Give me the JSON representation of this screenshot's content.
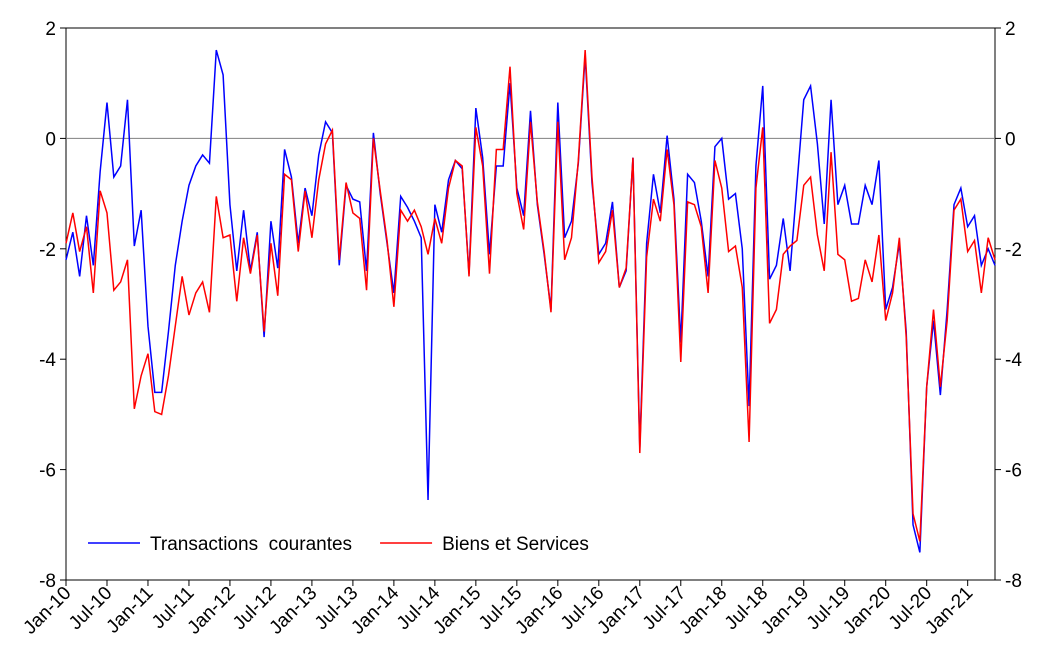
{
  "chart_data": {
    "type": "line",
    "categories": [
      "Jan-10",
      null,
      null,
      null,
      null,
      null,
      "Jul-10",
      null,
      null,
      null,
      null,
      null,
      "Jan-11",
      null,
      null,
      null,
      null,
      null,
      "Jul-11",
      null,
      null,
      null,
      null,
      null,
      "Jan-12",
      null,
      null,
      null,
      null,
      null,
      "Jul-12",
      null,
      null,
      null,
      null,
      null,
      "Jan-13",
      null,
      null,
      null,
      null,
      null,
      "Jul-13",
      null,
      null,
      null,
      null,
      null,
      "Jan-14",
      null,
      null,
      null,
      null,
      null,
      "Jul-14",
      null,
      null,
      null,
      null,
      null,
      "Jan-15",
      null,
      null,
      null,
      null,
      null,
      "Jul-15",
      null,
      null,
      null,
      null,
      null,
      "Jan-16",
      null,
      null,
      null,
      null,
      null,
      "Jul-16",
      null,
      null,
      null,
      null,
      null,
      "Jan-17",
      null,
      null,
      null,
      null,
      null,
      "Jul-17",
      null,
      null,
      null,
      null,
      null,
      "Jan-18",
      null,
      null,
      null,
      null,
      null,
      "Jul-18",
      null,
      null,
      null,
      null,
      null,
      "Jan-19",
      null,
      null,
      null,
      null,
      null,
      "Jul-19",
      null,
      null,
      null,
      null,
      null,
      "Jan-20",
      null,
      null,
      null,
      null,
      null,
      "Jul-20",
      null,
      null,
      null,
      null,
      null,
      "Jan-21",
      null,
      null,
      null,
      null
    ],
    "series": [
      {
        "name": "Transactions  courantes",
        "color": "#0000ff",
        "values": [
          -2.2,
          -1.7,
          -2.5,
          -1.4,
          -2.3,
          -0.6,
          0.65,
          -0.7,
          -0.5,
          0.7,
          -1.95,
          -1.3,
          -3.4,
          -4.6,
          -4.6,
          -3.5,
          -2.3,
          -1.5,
          -0.85,
          -0.5,
          -0.3,
          -0.45,
          1.6,
          1.15,
          -1.2,
          -2.4,
          -1.3,
          -2.4,
          -1.7,
          -3.6,
          -1.5,
          -2.35,
          -0.2,
          -0.7,
          -1.9,
          -0.9,
          -1.4,
          -0.3,
          0.3,
          0.1,
          -2.3,
          -0.85,
          -1.1,
          -1.15,
          -2.4,
          0.1,
          -1.0,
          -1.9,
          -2.8,
          -1.05,
          -1.25,
          -1.5,
          -1.8,
          -6.55,
          -1.2,
          -1.7,
          -0.75,
          -0.4,
          -0.55,
          -2.45,
          0.55,
          -0.35,
          -2.1,
          -0.5,
          -0.5,
          1.0,
          -0.9,
          -1.4,
          0.5,
          -1.2,
          -2.1,
          -3.1,
          0.65,
          -1.8,
          -1.5,
          -0.45,
          1.5,
          -0.8,
          -2.1,
          -1.9,
          -1.15,
          -2.7,
          -2.4,
          -0.35,
          -5.6,
          -1.9,
          -0.65,
          -1.35,
          0.05,
          -1.1,
          -3.7,
          -0.65,
          -0.8,
          -1.5,
          -2.5,
          -0.15,
          0.0,
          -1.1,
          -1.0,
          -2.0,
          -4.85,
          -0.5,
          0.95,
          -2.55,
          -2.3,
          -1.45,
          -2.4,
          -0.85,
          0.7,
          0.95,
          -0.1,
          -1.55,
          0.7,
          -1.2,
          -0.85,
          -1.55,
          -1.55,
          -0.85,
          -1.2,
          -0.4,
          -3.1,
          -2.7,
          -1.9,
          -3.5,
          -7.0,
          -7.5,
          -4.5,
          -3.3,
          -4.65,
          -3.1,
          -1.2,
          -0.9,
          -1.6,
          -1.4,
          -2.3,
          -2.0,
          -2.3
        ]
      },
      {
        "name": "Biens et Services",
        "color": "#ff0000",
        "values": [
          -1.9,
          -1.35,
          -2.05,
          -1.6,
          -2.8,
          -0.95,
          -1.35,
          -2.75,
          -2.6,
          -2.2,
          -4.9,
          -4.3,
          -3.9,
          -4.95,
          -5.0,
          -4.3,
          -3.4,
          -2.5,
          -3.2,
          -2.8,
          -2.6,
          -3.15,
          -1.05,
          -1.8,
          -1.75,
          -2.95,
          -1.8,
          -2.45,
          -1.75,
          -3.5,
          -1.9,
          -2.85,
          -0.65,
          -0.75,
          -2.05,
          -0.95,
          -1.8,
          -0.75,
          -0.1,
          0.15,
          -2.2,
          -0.8,
          -1.35,
          -1.45,
          -2.75,
          0.0,
          -0.95,
          -1.85,
          -3.05,
          -1.3,
          -1.5,
          -1.3,
          -1.6,
          -2.1,
          -1.45,
          -1.9,
          -0.9,
          -0.4,
          -0.5,
          -2.5,
          0.2,
          -0.5,
          -2.45,
          -0.2,
          -0.2,
          1.3,
          -1.0,
          -1.65,
          0.3,
          -1.15,
          -2.05,
          -3.15,
          0.3,
          -2.2,
          -1.8,
          -0.4,
          1.6,
          -0.7,
          -2.25,
          -2.05,
          -1.3,
          -2.7,
          -2.35,
          -0.35,
          -5.7,
          -2.15,
          -1.1,
          -1.5,
          -0.2,
          -1.2,
          -4.05,
          -1.15,
          -1.2,
          -1.6,
          -2.8,
          -0.4,
          -0.9,
          -2.05,
          -1.95,
          -2.7,
          -5.5,
          -0.9,
          0.2,
          -3.35,
          -3.1,
          -2.1,
          -1.95,
          -1.85,
          -0.85,
          -0.7,
          -1.75,
          -2.4,
          -0.25,
          -2.1,
          -2.2,
          -2.95,
          -2.9,
          -2.2,
          -2.6,
          -1.75,
          -3.3,
          -2.8,
          -1.8,
          -3.6,
          -6.8,
          -7.3,
          -4.5,
          -3.1,
          -4.5,
          -3.3,
          -1.3,
          -1.1,
          -2.05,
          -1.85,
          -2.8,
          -1.8,
          -2.2
        ]
      }
    ],
    "ylim": [
      -8,
      2
    ],
    "yticks": [
      -8,
      -6,
      -4,
      -2,
      0,
      2
    ],
    "y2lim": [
      -8,
      2
    ],
    "y2ticks": [
      -8,
      -6,
      -4,
      -2,
      0,
      2
    ],
    "zero_line": true,
    "grid": false,
    "legend": "lower left"
  }
}
